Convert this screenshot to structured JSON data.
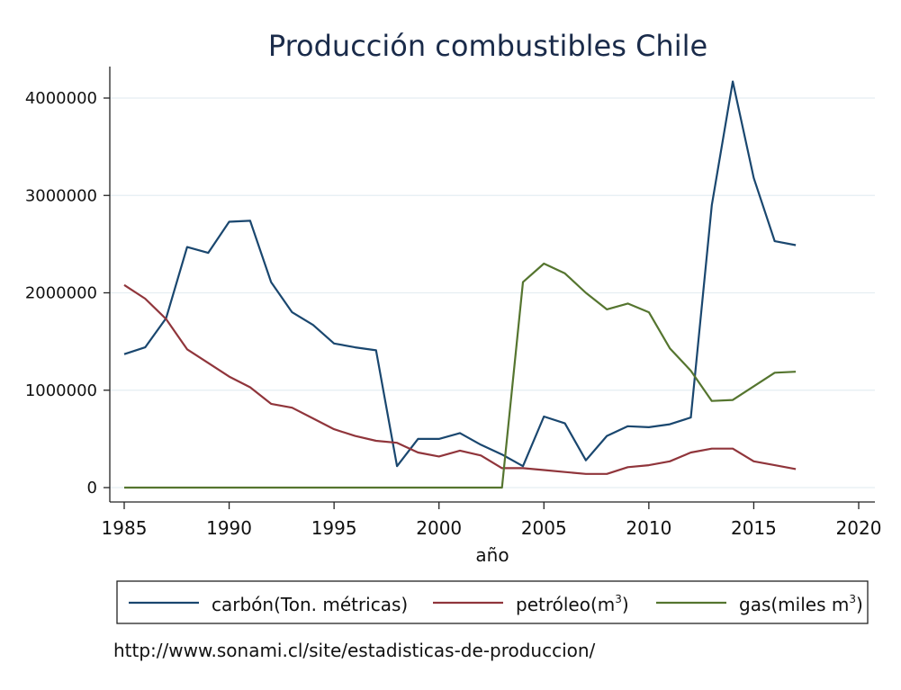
{
  "chart_data": {
    "type": "line",
    "title": "Producción combustibles Chile",
    "xlabel": "año",
    "ylabel": "",
    "xlim": [
      1985,
      2020
    ],
    "ylim": [
      0,
      4200000
    ],
    "xticks": [
      1985,
      1990,
      1995,
      2000,
      2005,
      2010,
      2015,
      2020
    ],
    "yticks": [
      0,
      1000000,
      2000000,
      3000000,
      4000000
    ],
    "x": [
      1985,
      1986,
      1987,
      1988,
      1989,
      1990,
      1991,
      1992,
      1993,
      1994,
      1995,
      1996,
      1997,
      1998,
      1999,
      2000,
      2001,
      2002,
      2003,
      2004,
      2005,
      2006,
      2007,
      2008,
      2009,
      2010,
      2011,
      2012,
      2013,
      2014,
      2015,
      2016,
      2017
    ],
    "series": [
      {
        "name": "carbón(Ton. métricas)",
        "color": "#1a476f",
        "values": [
          1370000,
          1440000,
          1740000,
          2470000,
          2410000,
          2730000,
          2740000,
          2110000,
          1800000,
          1670000,
          1480000,
          1440000,
          1410000,
          220000,
          500000,
          500000,
          560000,
          440000,
          340000,
          220000,
          730000,
          660000,
          280000,
          530000,
          630000,
          620000,
          650000,
          720000,
          2900000,
          4170000,
          3180000,
          2530000,
          2490000
        ]
      },
      {
        "name": "petróleo(m3)",
        "color": "#90353b",
        "values": [
          2080000,
          1940000,
          1730000,
          1420000,
          1280000,
          1140000,
          1030000,
          860000,
          820000,
          710000,
          600000,
          530000,
          480000,
          460000,
          360000,
          320000,
          380000,
          330000,
          200000,
          200000,
          180000,
          160000,
          140000,
          140000,
          210000,
          230000,
          270000,
          360000,
          400000,
          400000,
          270000,
          230000,
          190000
        ]
      },
      {
        "name": "gas(miles m3)",
        "color": "#55752f",
        "values": [
          0,
          0,
          0,
          0,
          0,
          0,
          0,
          0,
          0,
          0,
          0,
          0,
          0,
          0,
          0,
          0,
          0,
          0,
          0,
          2110000,
          2300000,
          2200000,
          2000000,
          1830000,
          1890000,
          1800000,
          1430000,
          1200000,
          890000,
          900000,
          1040000,
          1180000,
          1190000
        ]
      }
    ],
    "legend": {
      "position": "bottom",
      "entries": [
        {
          "base": "carbón(Ton. métricas)",
          "sup": ""
        },
        {
          "base": "petróleo(m",
          "sup": "3",
          "tail": ")"
        },
        {
          "base": "gas(miles m",
          "sup": "3",
          "tail": ")"
        }
      ]
    },
    "note": "http://www.sonami.cl/site/estadisticas-de-produccion/"
  }
}
